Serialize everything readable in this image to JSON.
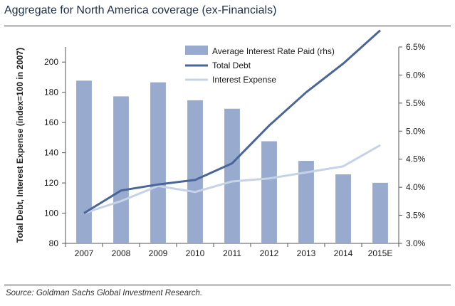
{
  "title": "Aggregate for North America coverage (ex-Financials)",
  "source": "Source: Goldman Sachs Global Investment Research.",
  "chart_data": {
    "type": "bar",
    "categories": [
      "2007",
      "2008",
      "2009",
      "2010",
      "2011",
      "2012",
      "2013",
      "2014",
      "2015E"
    ],
    "ylabel": "Total Debt, Interest Expense (index=100 in 2007)",
    "ylim": [
      80,
      210
    ],
    "yticks": [
      "80",
      "100",
      "120",
      "140",
      "160",
      "180",
      "200"
    ],
    "ylim_right": [
      3.0,
      6.5
    ],
    "yticks_right": [
      "3.0%",
      "3.5%",
      "4.0%",
      "4.5%",
      "5.0%",
      "5.5%",
      "6.0%",
      "6.5%"
    ],
    "legend_position": "top-center",
    "grid": false,
    "series": [
      {
        "name": "Average Interest Rate Paid (rhs)",
        "kind": "bar",
        "axis": "right",
        "color": "#98abcf",
        "values": [
          5.9,
          5.62,
          5.87,
          5.55,
          5.4,
          4.82,
          4.47,
          4.23,
          4.08
        ]
      },
      {
        "name": "Total Debt",
        "kind": "line",
        "axis": "left",
        "color": "#4a6699",
        "values": [
          100,
          115,
          119,
          122,
          133,
          158,
          180,
          199,
          221
        ]
      },
      {
        "name": "Interest Expense",
        "kind": "line",
        "axis": "left",
        "color": "#c6d3e6",
        "values": [
          100,
          108,
          118,
          114,
          121,
          123,
          127,
          131,
          145
        ]
      }
    ]
  }
}
